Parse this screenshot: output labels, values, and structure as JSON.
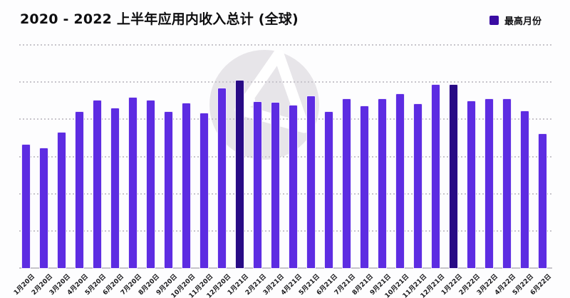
{
  "header": {
    "title": "2020 - 2022 上半年应用内收入总计 (全球)"
  },
  "legend": {
    "label": "最高月份",
    "swatch_color": "#3a0ca3"
  },
  "colors": {
    "bar": "#5d2ce2",
    "bar_highlight": "#280b85",
    "grid": "#c7c4cb",
    "axis": "#c6c4ca",
    "watermark_circle": "#e7e5e9",
    "watermark_glyph": "#ffffff",
    "title_text": "#0e0e10",
    "background": "#fdfdfe"
  },
  "chart_data": {
    "type": "bar",
    "title": "2020 - 2022 上半年应用内收入总计 (全球)",
    "xlabel": "",
    "ylabel": "",
    "categories": [
      "1月20日",
      "2月20日",
      "3月20日",
      "4月20日",
      "5月20日",
      "6月20日",
      "7月20日",
      "8月20日",
      "9月20日",
      "10月20日",
      "11月20日",
      "12月20日",
      "1月21日",
      "2月21日",
      "3月21日",
      "4月21日",
      "5月21日",
      "6月21日",
      "7月21日",
      "8月21日",
      "9月21日",
      "10月21日",
      "11月21日",
      "12月21日",
      "1月22日",
      "2月22日",
      "3月22日",
      "4月22日",
      "5月22日",
      "6月22日"
    ],
    "values": [
      33.1,
      32.3,
      36.5,
      41.9,
      45.1,
      42.9,
      45.8,
      45.1,
      41.9,
      44.3,
      41.6,
      48.3,
      50.4,
      44.7,
      44.4,
      43.8,
      46.2,
      42.0,
      45.4,
      43.5,
      45.5,
      46.8,
      44.0,
      49.3,
      49.3,
      44.8,
      45.5,
      45.5,
      42.1,
      36.0
    ],
    "value_units": "relative (no y-axis labels shown; estimated from gridlines, 10 per gridline)",
    "highlighted_indices": [
      12,
      24
    ],
    "highlight_legend": "最高月份",
    "ylim": [
      0,
      60
    ],
    "gridline_step": 10,
    "grid": "horizontal dotted",
    "y_axis_labels_visible": false,
    "legend_position": "top-right",
    "x_tick_rotation": -45
  }
}
